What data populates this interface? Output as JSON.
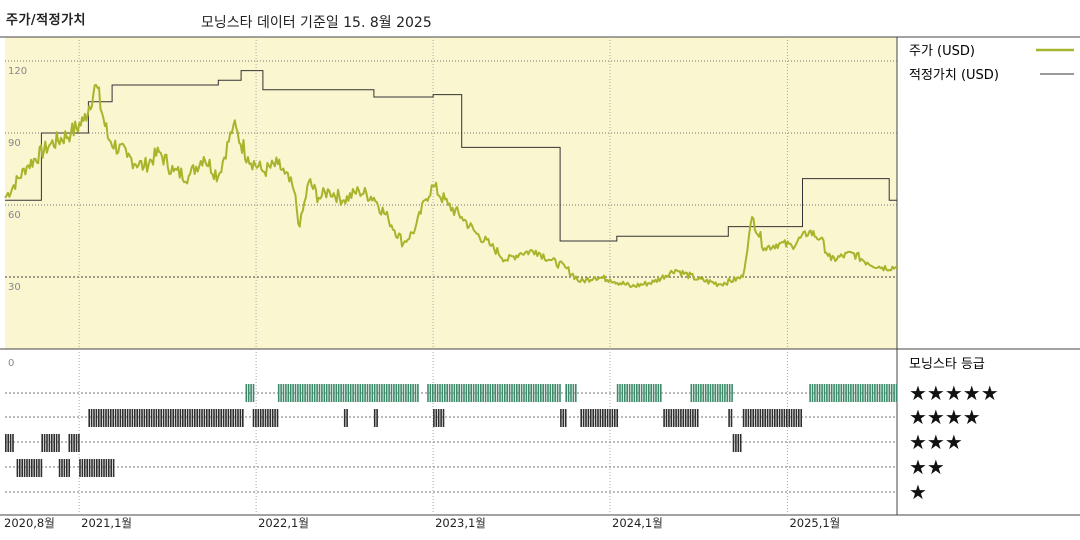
{
  "header": {
    "title": "주가/적정가치",
    "subtitle": "모닝스타 데이터 기준일 15. 8월 2025"
  },
  "legend": {
    "price_label": "주가 (USD)",
    "fair_label": "적정가치 (USD)",
    "rating_title": "모닝스타 등급"
  },
  "colors": {
    "price_line": "#a8b42c",
    "fair_line": "#333333",
    "upper_bg": "#faf6d0",
    "five_star": "#3d8a6a",
    "other_star": "#2e2e2e"
  },
  "chart_data": {
    "type": "line",
    "title": "주가/적정가치",
    "ylim": [
      0,
      120
    ],
    "y_ticks": [
      "120",
      "90",
      "60",
      "30"
    ],
    "x_tick_labels": [
      "2020,8월",
      "2021,1월",
      "2022,1월",
      "2023,1월",
      "2024,1월",
      "2025,1월"
    ],
    "x_tick_dates": [
      "2020-08",
      "2021-01",
      "2022-01",
      "2023-01",
      "2024-01",
      "2025-01"
    ],
    "x_range": [
      "2020-08-01",
      "2025-08-15"
    ],
    "series": [
      {
        "name": "주가 (USD)",
        "points": [
          [
            "2020-08-01",
            63
          ],
          [
            "2020-09-15",
            76
          ],
          [
            "2020-11-01",
            85
          ],
          [
            "2020-12-15",
            90
          ],
          [
            "2021-01-10",
            95
          ],
          [
            "2021-02-05",
            110
          ],
          [
            "2021-03-01",
            88
          ],
          [
            "2021-04-10",
            80
          ],
          [
            "2021-05-15",
            76
          ],
          [
            "2021-06-15",
            82
          ],
          [
            "2021-07-15",
            74
          ],
          [
            "2021-08-15",
            72
          ],
          [
            "2021-09-15",
            80
          ],
          [
            "2021-10-15",
            72
          ],
          [
            "2021-11-15",
            93
          ],
          [
            "2021-12-15",
            80
          ],
          [
            "2022-01-15",
            74
          ],
          [
            "2022-02-15",
            77
          ],
          [
            "2022-03-01",
            73
          ],
          [
            "2022-03-20",
            66
          ],
          [
            "2022-04-01",
            51
          ],
          [
            "2022-04-20",
            70
          ],
          [
            "2022-05-10",
            63
          ],
          [
            "2022-06-01",
            66
          ],
          [
            "2022-07-01",
            62
          ],
          [
            "2022-08-01",
            66
          ],
          [
            "2022-09-01",
            63
          ],
          [
            "2022-10-01",
            54
          ],
          [
            "2022-11-01",
            44
          ],
          [
            "2022-11-25",
            50
          ],
          [
            "2022-12-15",
            62
          ],
          [
            "2023-01-01",
            68
          ],
          [
            "2023-02-01",
            60
          ],
          [
            "2023-03-01",
            55
          ],
          [
            "2023-04-01",
            48
          ],
          [
            "2023-05-01",
            43
          ],
          [
            "2023-06-01",
            37
          ],
          [
            "2023-07-01",
            40
          ],
          [
            "2023-08-01",
            41
          ],
          [
            "2023-09-01",
            37
          ],
          [
            "2023-10-01",
            34
          ],
          [
            "2023-11-01",
            28
          ],
          [
            "2023-12-01",
            30
          ],
          [
            "2024-01-01",
            29
          ],
          [
            "2024-02-15",
            26
          ],
          [
            "2024-04-01",
            28
          ],
          [
            "2024-05-15",
            33
          ],
          [
            "2024-07-01",
            29
          ],
          [
            "2024-08-15",
            27
          ],
          [
            "2024-10-01",
            30
          ],
          [
            "2024-10-20",
            55
          ],
          [
            "2024-11-15",
            42
          ],
          [
            "2024-12-15",
            44
          ],
          [
            "2025-01-10",
            43
          ],
          [
            "2025-02-15",
            49
          ],
          [
            "2025-03-10",
            46
          ],
          [
            "2025-04-01",
            37
          ],
          [
            "2025-05-15",
            40
          ],
          [
            "2025-06-15",
            36
          ],
          [
            "2025-07-15",
            34
          ],
          [
            "2025-08-15",
            34
          ]
        ]
      },
      {
        "name": "적정가치 (USD)",
        "steps": [
          [
            "2020-08-01",
            62
          ],
          [
            "2020-10-15",
            62
          ],
          [
            "2020-10-15",
            90
          ],
          [
            "2021-01-20",
            90
          ],
          [
            "2021-01-20",
            103
          ],
          [
            "2021-03-10",
            103
          ],
          [
            "2021-03-10",
            110
          ],
          [
            "2021-10-15",
            110
          ],
          [
            "2021-10-15",
            112
          ],
          [
            "2021-12-01",
            112
          ],
          [
            "2021-12-01",
            116
          ],
          [
            "2022-01-15",
            116
          ],
          [
            "2022-01-15",
            108
          ],
          [
            "2022-09-01",
            108
          ],
          [
            "2022-09-01",
            105
          ],
          [
            "2023-01-01",
            105
          ],
          [
            "2023-01-01",
            106
          ],
          [
            "2023-03-01",
            106
          ],
          [
            "2023-03-01",
            84
          ],
          [
            "2023-09-20",
            84
          ],
          [
            "2023-09-20",
            45
          ],
          [
            "2024-01-15",
            45
          ],
          [
            "2024-01-15",
            47
          ],
          [
            "2024-09-01",
            47
          ],
          [
            "2024-09-01",
            51
          ],
          [
            "2025-02-01",
            51
          ],
          [
            "2025-02-01",
            71
          ],
          [
            "2025-07-30",
            71
          ],
          [
            "2025-07-30",
            62
          ],
          [
            "2025-08-15",
            62
          ]
        ]
      }
    ],
    "ratings": {
      "levels": [
        "★★★★★",
        "★★★★",
        "★★★",
        "★★",
        "★"
      ],
      "periods": {
        "5": [
          [
            "2021-12-10",
            "2021-12-25"
          ],
          [
            "2022-02-15",
            "2022-11-30"
          ],
          [
            "2022-12-20",
            "2023-09-20"
          ],
          [
            "2023-10-01",
            "2023-10-25"
          ],
          [
            "2024-01-15",
            "2024-04-15"
          ],
          [
            "2024-06-15",
            "2024-09-10"
          ],
          [
            "2025-02-15",
            "2025-08-15"
          ]
        ],
        "4": [
          [
            "2021-01-20",
            "2021-12-05"
          ],
          [
            "2021-12-25",
            "2022-02-15"
          ],
          [
            "2022-07-01",
            "2022-07-10"
          ],
          [
            "2022-09-01",
            "2022-09-10"
          ],
          [
            "2023-01-01",
            "2023-01-25"
          ],
          [
            "2023-09-20",
            "2023-10-01"
          ],
          [
            "2023-11-01",
            "2024-01-15"
          ],
          [
            "2024-04-20",
            "2024-07-01"
          ],
          [
            "2024-09-01",
            "2024-09-10"
          ],
          [
            "2024-10-01",
            "2025-02-01"
          ]
        ],
        "3": [
          [
            "2020-08-01",
            "2020-08-20"
          ],
          [
            "2020-10-15",
            "2020-11-20"
          ],
          [
            "2020-12-10",
            "2021-01-01"
          ],
          [
            "2024-09-10",
            "2024-09-25"
          ]
        ],
        "2": [
          [
            "2020-08-25",
            "2020-10-15"
          ],
          [
            "2020-11-20",
            "2020-12-10"
          ],
          [
            "2021-01-01",
            "2021-03-15"
          ]
        ],
        "1": []
      }
    }
  }
}
